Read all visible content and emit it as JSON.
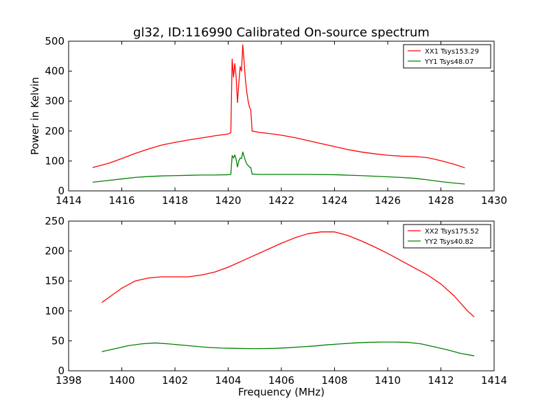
{
  "title": "gl32, ID:116990 Calibrated On-source spectrum",
  "colors": {
    "XX": "#ff0000",
    "YY": "#008000"
  },
  "chart_data": [
    {
      "type": "line",
      "xlabel": "",
      "ylabel": "Power in Kelvin",
      "xlim": [
        1414,
        1430
      ],
      "ylim": [
        0,
        500
      ],
      "xticks": [
        "1414",
        "1416",
        "1418",
        "1420",
        "1422",
        "1424",
        "1426",
        "1428",
        "1430"
      ],
      "yticks": [
        "0",
        "100",
        "200",
        "300",
        "400",
        "500"
      ],
      "legend_position": "top-right",
      "series": [
        {
          "name": "XX1 Tsys153.29",
          "color": "#ff0000",
          "points": [
            [
              1414.9,
              78
            ],
            [
              1415.5,
              92
            ],
            [
              1416,
              108
            ],
            [
              1416.5,
              125
            ],
            [
              1417,
              140
            ],
            [
              1417.5,
              153
            ],
            [
              1418,
              162
            ],
            [
              1418.5,
              170
            ],
            [
              1419,
              177
            ],
            [
              1419.5,
              184
            ],
            [
              1420,
              190
            ],
            [
              1420.1,
              195
            ],
            [
              1420.15,
              440
            ],
            [
              1420.2,
              380
            ],
            [
              1420.25,
              425
            ],
            [
              1420.3,
              380
            ],
            [
              1420.35,
              295
            ],
            [
              1420.4,
              360
            ],
            [
              1420.45,
              415
            ],
            [
              1420.5,
              400
            ],
            [
              1420.55,
              488
            ],
            [
              1420.6,
              430
            ],
            [
              1420.65,
              370
            ],
            [
              1420.7,
              330
            ],
            [
              1420.75,
              300
            ],
            [
              1420.8,
              280
            ],
            [
              1420.85,
              270
            ],
            [
              1420.9,
              200
            ],
            [
              1421.2,
              195
            ],
            [
              1421.5,
              192
            ],
            [
              1422,
              186
            ],
            [
              1422.5,
              178
            ],
            [
              1423,
              168
            ],
            [
              1423.5,
              158
            ],
            [
              1424,
              148
            ],
            [
              1424.5,
              138
            ],
            [
              1425,
              130
            ],
            [
              1425.5,
              124
            ],
            [
              1426,
              119
            ],
            [
              1426.5,
              116
            ],
            [
              1427,
              115
            ],
            [
              1427.5,
              111
            ],
            [
              1428,
              101
            ],
            [
              1428.5,
              89
            ],
            [
              1428.9,
              77
            ]
          ]
        },
        {
          "name": "YY1 Tsys48.07",
          "color": "#008000",
          "points": [
            [
              1414.9,
              29
            ],
            [
              1415.5,
              35
            ],
            [
              1416,
              40
            ],
            [
              1416.5,
              45
            ],
            [
              1417,
              48
            ],
            [
              1417.5,
              50
            ],
            [
              1418,
              51
            ],
            [
              1418.5,
              52
            ],
            [
              1419,
              53
            ],
            [
              1419.5,
              53
            ],
            [
              1420,
              54
            ],
            [
              1420.1,
              55
            ],
            [
              1420.15,
              118
            ],
            [
              1420.2,
              110
            ],
            [
              1420.25,
              120
            ],
            [
              1420.3,
              105
            ],
            [
              1420.35,
              80
            ],
            [
              1420.4,
              100
            ],
            [
              1420.45,
              110
            ],
            [
              1420.5,
              108
            ],
            [
              1420.55,
              130
            ],
            [
              1420.6,
              115
            ],
            [
              1420.65,
              100
            ],
            [
              1420.7,
              90
            ],
            [
              1420.75,
              85
            ],
            [
              1420.8,
              80
            ],
            [
              1420.85,
              78
            ],
            [
              1420.9,
              56
            ],
            [
              1421.2,
              55
            ],
            [
              1422,
              55
            ],
            [
              1423,
              55
            ],
            [
              1424,
              54
            ],
            [
              1425,
              51
            ],
            [
              1426,
              47
            ],
            [
              1426.5,
              45
            ],
            [
              1427,
              42
            ],
            [
              1427.5,
              37
            ],
            [
              1428,
              31
            ],
            [
              1428.5,
              26
            ],
            [
              1428.9,
              23
            ]
          ]
        }
      ]
    },
    {
      "type": "line",
      "xlabel": "Frequency (MHz)",
      "ylabel": "",
      "xlim": [
        1398,
        1414
      ],
      "ylim": [
        0,
        250
      ],
      "xticks": [
        "1398",
        "1400",
        "1402",
        "1404",
        "1406",
        "1408",
        "1410",
        "1412",
        "1414"
      ],
      "yticks": [
        "0",
        "50",
        "100",
        "150",
        "200",
        "250"
      ],
      "legend_position": "top-right",
      "series": [
        {
          "name": "XX2 Tsys175.52",
          "color": "#ff0000",
          "points": [
            [
              1399.25,
              114
            ],
            [
              1399.5,
              122
            ],
            [
              1400,
              138
            ],
            [
              1400.5,
              150
            ],
            [
              1401,
              155
            ],
            [
              1401.5,
              157
            ],
            [
              1402,
              157
            ],
            [
              1402.5,
              157
            ],
            [
              1403,
              160
            ],
            [
              1403.5,
              165
            ],
            [
              1404,
              173
            ],
            [
              1404.5,
              183
            ],
            [
              1405,
              193
            ],
            [
              1405.5,
              203
            ],
            [
              1406,
              213
            ],
            [
              1406.5,
              222
            ],
            [
              1407,
              229
            ],
            [
              1407.5,
              232
            ],
            [
              1408,
              232
            ],
            [
              1408.5,
              226
            ],
            [
              1409,
              217
            ],
            [
              1409.5,
              207
            ],
            [
              1410,
              196
            ],
            [
              1410.5,
              184
            ],
            [
              1411,
              172
            ],
            [
              1411.5,
              160
            ],
            [
              1412,
              145
            ],
            [
              1412.5,
              125
            ],
            [
              1413,
              100
            ],
            [
              1413.25,
              90
            ]
          ]
        },
        {
          "name": "YY2 Tsys40.82",
          "color": "#008000",
          "points": [
            [
              1399.25,
              32
            ],
            [
              1399.75,
              37
            ],
            [
              1400.25,
              42
            ],
            [
              1400.75,
              45
            ],
            [
              1401.25,
              46.5
            ],
            [
              1401.75,
              45
            ],
            [
              1402.25,
              43
            ],
            [
              1402.75,
              41
            ],
            [
              1403.25,
              39
            ],
            [
              1403.75,
              38
            ],
            [
              1404.25,
              37.5
            ],
            [
              1405,
              37
            ],
            [
              1405.75,
              37.5
            ],
            [
              1406.25,
              38.5
            ],
            [
              1406.75,
              40
            ],
            [
              1407.25,
              41.5
            ],
            [
              1407.75,
              43.5
            ],
            [
              1408.25,
              45
            ],
            [
              1408.75,
              46.5
            ],
            [
              1409.25,
              47.5
            ],
            [
              1409.75,
              48
            ],
            [
              1410.25,
              48
            ],
            [
              1410.75,
              47.5
            ],
            [
              1411.25,
              45
            ],
            [
              1411.75,
              40
            ],
            [
              1412.25,
              35
            ],
            [
              1412.75,
              29
            ],
            [
              1413.25,
              25
            ]
          ]
        }
      ]
    }
  ]
}
